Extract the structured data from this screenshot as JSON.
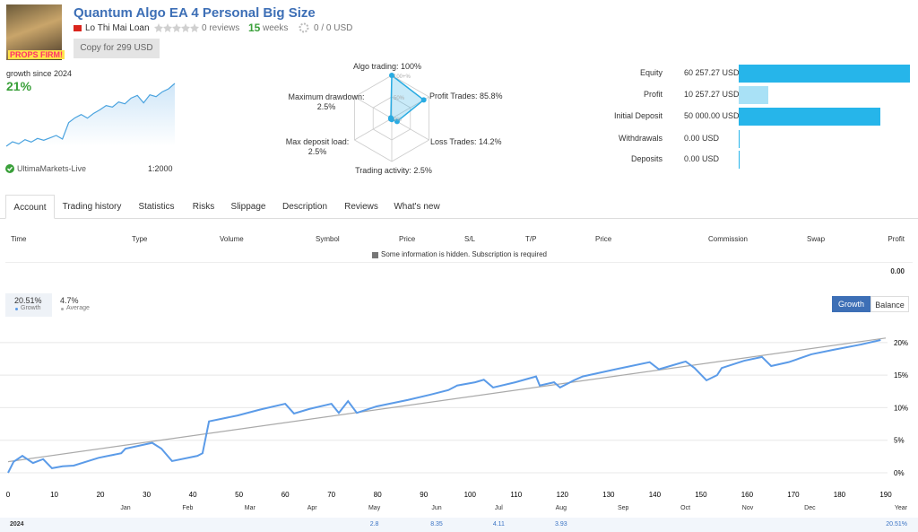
{
  "header": {
    "avatar_text": "PROPS FIRM!",
    "title": "Quantum Algo EA 4 Personal Big Size",
    "author": "Lo Thi Mai Loan",
    "reviews": "0 reviews",
    "weeks": 15,
    "weeks_label": "weeks",
    "subscribers": "0 / 0 USD",
    "copy_button": "Copy for 299 USD"
  },
  "growth": {
    "label": "growth since 2024",
    "value_label": "21%",
    "sparkline": [
      0,
      1.5,
      0.8,
      2.2,
      1.4,
      2.6,
      2.0,
      2.8,
      3.6,
      2.4,
      7.9,
      9.5,
      10.6,
      9.4,
      11.0,
      12.2,
      13.6,
      13.1,
      14.8,
      14.2,
      16.1,
      17.0,
      14.5,
      17.2,
      16.6,
      18.2,
      19.2,
      21
    ],
    "broker": "UltimaMarkets-Live",
    "leverage": "1:2000"
  },
  "radar": {
    "ticks": [
      {
        "value": 0,
        "label": "0%"
      },
      {
        "value": 50,
        "label": "50%"
      },
      {
        "value": 100,
        "label": "100+%"
      }
    ],
    "axes": [
      {
        "label": "Algo trading: 100%",
        "value": 100
      },
      {
        "label": "Profit Trades: 85.8%",
        "value": 85.8
      },
      {
        "label": "Loss Trades: 14.2%",
        "value": 14.2
      },
      {
        "label": "Trading activity: 2.5%",
        "value": 2.5
      },
      {
        "label": "Max deposit load: 2.5%",
        "value": 2.5
      },
      {
        "label": "Maximum drawdown: 2.5%",
        "value": 2.5
      }
    ],
    "color": "#29abe2"
  },
  "balance": {
    "max": 60257.27,
    "items": [
      {
        "label": "Equity",
        "value": 60257.27,
        "value_label": "60 257.27 USD",
        "color": "#26b5ea"
      },
      {
        "label": "Profit",
        "value": 10257.27,
        "value_label": "10 257.27 USD",
        "color": "#a9e1f6"
      },
      {
        "label": "Initial Deposit",
        "value": 50000.0,
        "value_label": "50 000.00 USD",
        "color": "#26b5ea"
      },
      {
        "label": "Withdrawals",
        "value": 0.0,
        "value_label": "0.00 USD",
        "color": "#26b5ea"
      },
      {
        "label": "Deposits",
        "value": 0.0,
        "value_label": "0.00 USD",
        "color": "#26b5ea"
      }
    ]
  },
  "tabs": [
    "Account",
    "Trading history",
    "Statistics",
    "Risks",
    "Slippage",
    "Description",
    "Reviews",
    "What's new"
  ],
  "trades_table": {
    "columns": [
      "Time",
      "Type",
      "Volume",
      "Symbol",
      "Price",
      "S/L",
      "T/P",
      "Price",
      "Commission",
      "Swap",
      "Profit"
    ],
    "notice": "Some information is hidden. Subscription is required",
    "total": "0.00"
  },
  "chart_data": {
    "type": "line",
    "buttons": [
      "Growth",
      "Balance"
    ],
    "series": [
      {
        "name": "Growth",
        "summary": "20.51%",
        "color": "#5b9be8",
        "x": [
          0,
          1.2,
          3.1,
          5.4,
          7.6,
          9.5,
          11.8,
          14.2,
          19.6,
          24.5,
          25.4,
          31.2,
          33.2,
          35.5,
          41,
          42.1,
          43.5,
          49.7,
          54.5,
          60,
          61.9,
          65.2,
          70,
          71.6,
          73.6,
          75.5,
          79.8,
          86.6,
          91.4,
          95.3,
          97.2,
          101.1,
          103,
          105,
          109.8,
          114.3,
          115.1,
          118.2,
          119.5,
          122.5,
          124.4,
          132.2,
          138.9,
          140.9,
          146.7,
          148.6,
          151.2,
          153.5,
          154.5,
          159.3,
          163.2,
          165.2,
          169,
          173.9,
          178.7,
          184.6,
          188.9
        ],
        "values": [
          0,
          1.7,
          2.6,
          1.5,
          2.1,
          0.7,
          1.0,
          1.1,
          2.3,
          3.0,
          3.7,
          4.6,
          3.7,
          1.8,
          2.6,
          3.0,
          7.9,
          8.8,
          9.7,
          10.6,
          9.1,
          9.8,
          10.6,
          9.2,
          11.0,
          9.2,
          10.2,
          11.2,
          12.0,
          12.7,
          13.4,
          13.9,
          14.3,
          13.1,
          13.9,
          14.8,
          13.4,
          13.9,
          13.1,
          14.2,
          14.8,
          16.0,
          17.0,
          15.9,
          17.1,
          16.1,
          14.2,
          15.0,
          16.1,
          17.2,
          17.8,
          16.4,
          17.0,
          18.2,
          18.9,
          19.7,
          20.4
        ]
      },
      {
        "name": "Average",
        "summary": "4.7%",
        "color": "#aaaaaa",
        "x": [
          0,
          190
        ],
        "values": [
          1.7,
          20.7
        ]
      }
    ],
    "xlim": [
      0,
      190
    ],
    "ylim": [
      -2,
      21.5
    ],
    "xticks": [
      0,
      10,
      20,
      30,
      40,
      50,
      60,
      70,
      80,
      90,
      100,
      110,
      120,
      130,
      140,
      150,
      160,
      170,
      180,
      190
    ],
    "yticks": [
      {
        "value": 0,
        "label": "0%"
      },
      {
        "value": 5,
        "label": "5%"
      },
      {
        "value": 10,
        "label": "10%"
      },
      {
        "value": 15,
        "label": "15%"
      },
      {
        "value": 20,
        "label": "20%"
      }
    ],
    "grid": true
  },
  "monthly_table": {
    "columns": [
      "Jan",
      "Feb",
      "Mar",
      "Apr",
      "May",
      "Jun",
      "Jul",
      "Aug",
      "Sep",
      "Oct",
      "Nov",
      "Dec",
      "Year"
    ],
    "rows": [
      {
        "year": "2024",
        "values": [
          null,
          null,
          null,
          null,
          2.8,
          8.35,
          4.11,
          3.93,
          null,
          null,
          null,
          null
        ],
        "total": "20.51%"
      }
    ]
  }
}
